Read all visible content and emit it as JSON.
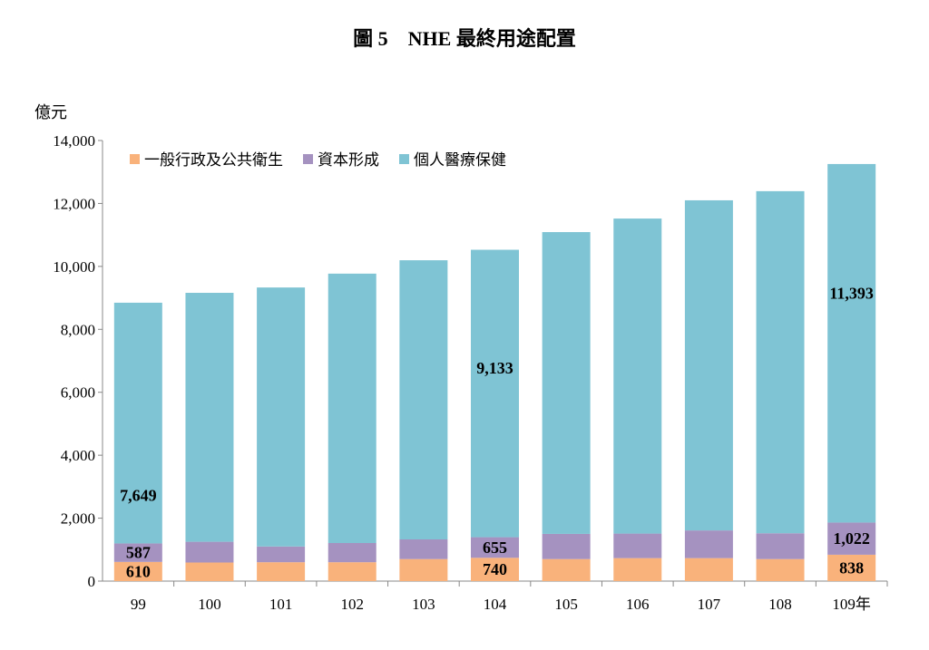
{
  "chart_data": {
    "type": "bar",
    "stacked": true,
    "title": "圖 5　NHE 最終用途配置",
    "ylabel": "億元",
    "ylim": [
      0,
      14000
    ],
    "yticks": [
      "0",
      "2,000",
      "4,000",
      "6,000",
      "8,000",
      "10,000",
      "12,000",
      "14,000"
    ],
    "categories": [
      "99",
      "100",
      "101",
      "102",
      "103",
      "104",
      "105",
      "106",
      "107",
      "108",
      "109年"
    ],
    "legend_position": "top-left",
    "grid": false,
    "series": [
      {
        "name": "一般行政及公共衛生",
        "color": "#F9B27B",
        "values": [
          610,
          590,
          600,
          600,
          700,
          740,
          700,
          730,
          730,
          700,
          838
        ]
      },
      {
        "name": "資本形成",
        "color": "#A592C0",
        "values": [
          587,
          660,
          500,
          610,
          625,
          655,
          800,
          780,
          880,
          820,
          1022
        ]
      },
      {
        "name": "個人醫療保健",
        "color": "#7FC4D4",
        "values": [
          7649,
          7910,
          8230,
          8560,
          8870,
          9133,
          9590,
          10010,
          10490,
          10870,
          11393
        ]
      }
    ],
    "data_labels": [
      {
        "series": 0,
        "index": 0,
        "text": "610"
      },
      {
        "series": 1,
        "index": 0,
        "text": "587"
      },
      {
        "series": 2,
        "index": 0,
        "text": "7,649"
      },
      {
        "series": 0,
        "index": 5,
        "text": "740"
      },
      {
        "series": 1,
        "index": 5,
        "text": "655"
      },
      {
        "series": 2,
        "index": 5,
        "text": "9,133"
      },
      {
        "series": 0,
        "index": 10,
        "text": "838"
      },
      {
        "series": 1,
        "index": 10,
        "text": "1,022"
      },
      {
        "series": 2,
        "index": 10,
        "text": "11,393"
      }
    ]
  }
}
